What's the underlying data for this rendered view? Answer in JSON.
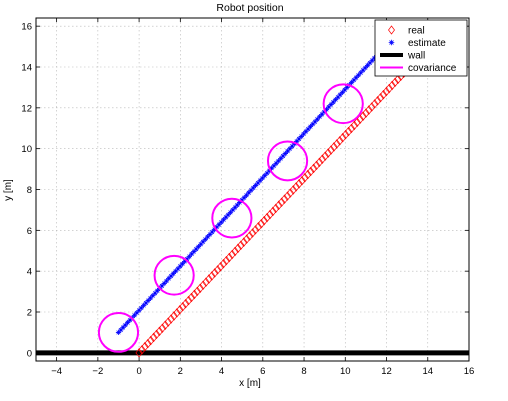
{
  "chart_data": {
    "type": "line",
    "title": "Robot position",
    "xlabel": "x [m]",
    "ylabel": "y [m]",
    "xlim": [
      -5,
      16
    ],
    "ylim": [
      -0.4,
      16.4
    ],
    "xticks": [
      -4,
      -2,
      0,
      2,
      4,
      6,
      8,
      10,
      12,
      14,
      16
    ],
    "yticks": [
      0,
      2,
      4,
      6,
      8,
      10,
      12,
      14,
      16
    ],
    "grid": true,
    "legend_position": "top-right",
    "legend": [
      "real",
      "estimate",
      "wall",
      "covariance"
    ],
    "series": [
      {
        "name": "real",
        "marker": "diamond",
        "color": "#ff0000",
        "x": [
          0,
          13.4
        ],
        "y": [
          0,
          14.3
        ]
      },
      {
        "name": "estimate",
        "marker": "asterisk",
        "color": "#0000ff",
        "x": [
          -1,
          12.3
        ],
        "y": [
          1,
          15.4
        ]
      },
      {
        "name": "wall",
        "color": "#000000",
        "x": [
          -5,
          16
        ],
        "y": [
          0,
          0
        ]
      },
      {
        "name": "covariance",
        "color": "#ff00ff",
        "centers": [
          [
            -1.0,
            1.0
          ],
          [
            1.7,
            3.8
          ],
          [
            4.5,
            6.6
          ],
          [
            7.2,
            9.4
          ],
          [
            9.9,
            12.2
          ]
        ],
        "radius": 0.95
      }
    ]
  }
}
